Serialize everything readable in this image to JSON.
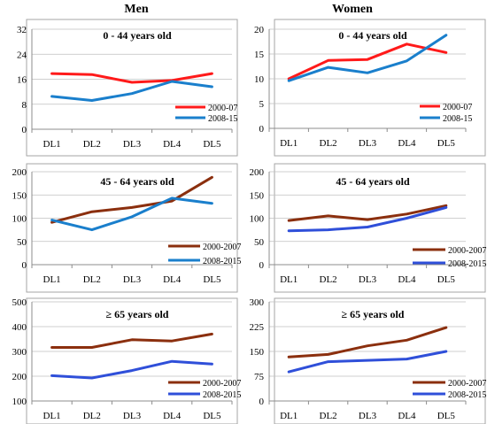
{
  "column_titles": [
    "Men",
    "Women"
  ],
  "colors": {
    "red": "#ff1a1a",
    "blue": "#1a7fcc",
    "brown": "#8b2f0e",
    "navy": "#2f4fd9",
    "axis": "#8c8c8c",
    "grid": "#bfbfbf",
    "frame": "#a6a6a6"
  },
  "chart_data": [
    {
      "type": "line",
      "panel": "men-0-44",
      "title": "0 - 44 years old",
      "categories": [
        "DL1",
        "DL2",
        "DL3",
        "DL4",
        "DL5"
      ],
      "ylim": [
        0,
        32
      ],
      "yticks": [
        0,
        8,
        16,
        24,
        32
      ],
      "grid": true,
      "legend_position": "bottom-right",
      "series": [
        {
          "name": "2000-07",
          "color": "#ff1a1a",
          "values": [
            17.8,
            17.5,
            15.0,
            15.6,
            17.8
          ]
        },
        {
          "name": "2008-15",
          "color": "#1a7fcc",
          "values": [
            10.5,
            9.2,
            11.4,
            15.3,
            13.6
          ]
        }
      ]
    },
    {
      "type": "line",
      "panel": "women-0-44",
      "title": "0 - 44 years old",
      "categories": [
        "DL1",
        "DL2",
        "DL3",
        "DL4",
        "DL5"
      ],
      "ylim": [
        0,
        20
      ],
      "yticks": [
        0,
        5,
        10,
        15,
        20
      ],
      "grid": true,
      "legend_position": "bottom-right",
      "series": [
        {
          "name": "2000-07",
          "color": "#ff1a1a",
          "values": [
            10.0,
            13.7,
            13.9,
            17.0,
            15.3
          ]
        },
        {
          "name": "2008-15",
          "color": "#1a7fcc",
          "values": [
            9.6,
            12.3,
            11.2,
            13.6,
            18.8
          ]
        }
      ]
    },
    {
      "type": "line",
      "panel": "men-45-64",
      "title": "45 - 64 years old",
      "categories": [
        "DL1",
        "DL2",
        "DL3",
        "DL4",
        "DL5"
      ],
      "ylim": [
        0,
        200
      ],
      "yticks": [
        0,
        50,
        100,
        150,
        200
      ],
      "grid": true,
      "legend_position": "bottom-right",
      "series": [
        {
          "name": "2000-2007",
          "color": "#8b2f0e",
          "values": [
            91,
            114,
            123,
            137,
            188
          ]
        },
        {
          "name": "2008-2015",
          "color": "#1a7fcc",
          "values": [
            96,
            75,
            103,
            143,
            132
          ]
        }
      ]
    },
    {
      "type": "line",
      "panel": "women-45-64",
      "title": "45 - 64 years old",
      "categories": [
        "DL1",
        "DL2",
        "DL3",
        "DL4",
        "DL5"
      ],
      "ylim": [
        0,
        200
      ],
      "yticks": [
        0,
        50,
        100,
        150,
        200
      ],
      "grid": true,
      "legend_position": "bottom-right",
      "series": [
        {
          "name": "2000-2007",
          "color": "#8b2f0e",
          "values": [
            95,
            105,
            97,
            109,
            127
          ]
        },
        {
          "name": "2008-2015",
          "color": "#2f4fd9",
          "values": [
            73,
            75,
            81,
            100,
            123
          ]
        }
      ]
    },
    {
      "type": "line",
      "panel": "men-65",
      "title": "≥ 65 years old",
      "categories": [
        "DL1",
        "DL2",
        "DL3",
        "DL4",
        "DL5"
      ],
      "ylim": [
        100,
        500
      ],
      "yticks": [
        100,
        200,
        300,
        400,
        500
      ],
      "grid": true,
      "legend_position": "bottom-right",
      "series": [
        {
          "name": "2000-2007",
          "color": "#8b2f0e",
          "values": [
            316,
            316,
            347,
            342,
            370
          ]
        },
        {
          "name": "2008-2015",
          "color": "#2f4fd9",
          "values": [
            202,
            193,
            223,
            260,
            249
          ]
        }
      ]
    },
    {
      "type": "line",
      "panel": "women-65",
      "title": "≥ 65 years old",
      "categories": [
        "DL1",
        "DL2",
        "DL3",
        "DL4",
        "DL5"
      ],
      "ylim": [
        0,
        300
      ],
      "yticks": [
        0,
        75,
        150,
        225,
        300
      ],
      "grid": true,
      "legend_position": "bottom-right",
      "series": [
        {
          "name": "2000-2007",
          "color": "#8b2f0e",
          "values": [
            133,
            141,
            167,
            184,
            222
          ]
        },
        {
          "name": "2008-2015",
          "color": "#2f4fd9",
          "values": [
            88,
            119,
            123,
            127,
            150
          ]
        }
      ]
    }
  ]
}
